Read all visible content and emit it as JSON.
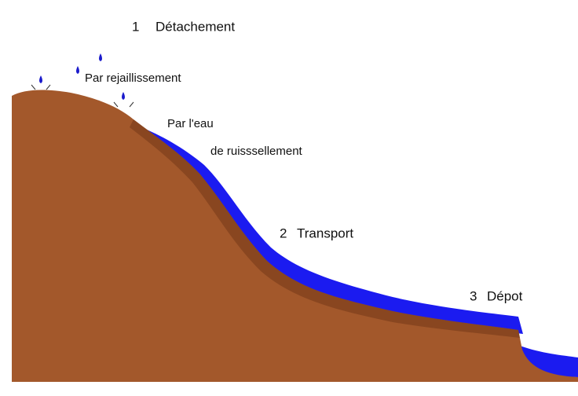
{
  "steps": [
    {
      "number": "1",
      "label": "Détachement"
    },
    {
      "number": "2",
      "label": "Transport"
    },
    {
      "number": "3",
      "label": "Dépot"
    }
  ],
  "annotations": [
    "Par rejaillissement",
    "Par l'eau",
    "de ruisssellement"
  ]
}
